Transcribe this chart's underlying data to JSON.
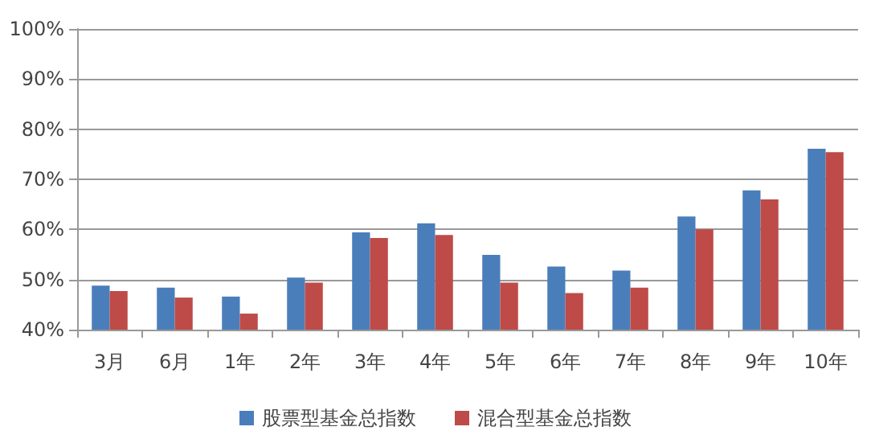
{
  "chart_data": {
    "type": "bar",
    "categories": [
      "3月",
      "6月",
      "1年",
      "2年",
      "3年",
      "4年",
      "5年",
      "6年",
      "7年",
      "8年",
      "9年",
      "10年"
    ],
    "series": [
      {
        "name": "股票型基金总指数",
        "color": "#4a7ebb",
        "values": [
          48.8,
          48.4,
          46.6,
          50.4,
          59.4,
          61.2,
          54.9,
          52.6,
          51.8,
          62.6,
          67.8,
          76.1
        ]
      },
      {
        "name": "混合型基金总指数",
        "color": "#be4b48",
        "values": [
          47.7,
          46.4,
          43.2,
          49.4,
          58.3,
          58.9,
          49.4,
          47.3,
          48.4,
          60.0,
          66.0,
          75.4
        ]
      }
    ],
    "ylim": [
      40,
      100
    ],
    "yticks": [
      {
        "value": 40,
        "label": "40%"
      },
      {
        "value": 50,
        "label": "50%"
      },
      {
        "value": 60,
        "label": "60%"
      },
      {
        "value": 70,
        "label": "70%"
      },
      {
        "value": 80,
        "label": "80%"
      },
      {
        "value": 90,
        "label": "90%"
      },
      {
        "value": 100,
        "label": "100%"
      }
    ],
    "grid": "y",
    "legend": "bottom"
  }
}
